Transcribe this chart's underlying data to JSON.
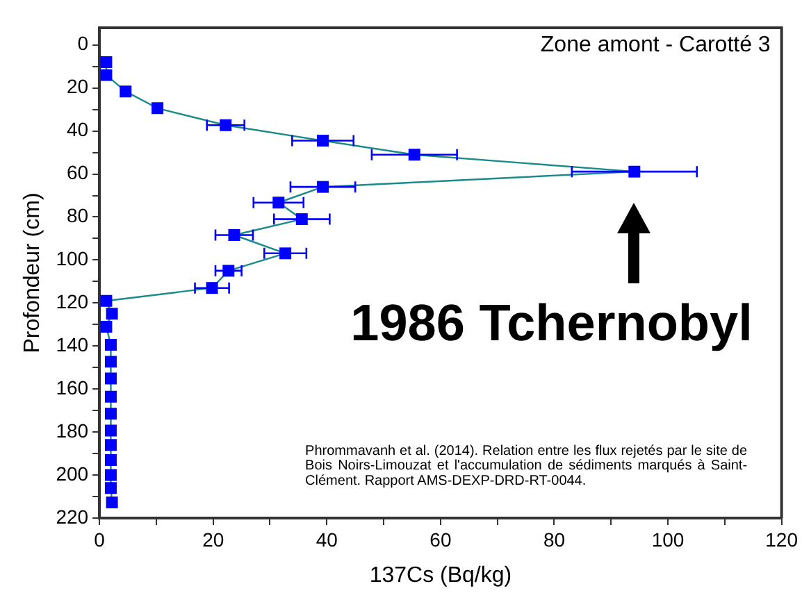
{
  "chart_data": {
    "type": "line",
    "title": "Zone amont - Carotté 3",
    "xlabel": "137Cs (Bq/kg)",
    "ylabel": "Profondeur (cm)",
    "x": [
      1.2,
      1.2,
      4.6,
      10.2,
      22.2,
      39.3,
      55.4,
      94.1,
      39.3,
      31.5,
      35.6,
      23.7,
      32.7,
      22.7,
      19.8,
      1.2,
      2.2,
      1.2,
      2,
      2,
      2,
      2,
      2,
      2,
      2,
      2,
      2,
      2,
      2.2
    ],
    "values": [
      8,
      14,
      21.6,
      29.4,
      37.3,
      44.5,
      51,
      58.9,
      66,
      73.3,
      81,
      88.4,
      96.9,
      105,
      113,
      119,
      125,
      131,
      139.4,
      147.3,
      155.1,
      163.6,
      171.5,
      179.3,
      186,
      193,
      200,
      206,
      212.7
    ],
    "xerrors": [
      null,
      null,
      null,
      null,
      3.3,
      5.4,
      7.5,
      11,
      5.7,
      4.4,
      4.9,
      3.3,
      3.7,
      2.3,
      3,
      null,
      null,
      null,
      null,
      null,
      null,
      null,
      null,
      null,
      null,
      null,
      null,
      null,
      null
    ],
    "color": "#0000ff",
    "marker": "square",
    "line_style": "solid",
    "xlim": [
      0,
      120
    ],
    "xticks": [
      0,
      {
        "value": 10,
        "label": null
      },
      20,
      {
        "value": 30,
        "label": null
      },
      40,
      {
        "value": 50,
        "label": null
      },
      60,
      {
        "value": 70,
        "label": null
      },
      80,
      {
        "value": 90,
        "label": null
      },
      100,
      {
        "value": 110,
        "label": null
      },
      120
    ],
    "ylim": [
      220,
      -8
    ],
    "yticks": [
      0,
      {
        "value": 10,
        "label": null
      },
      20,
      {
        "value": 30,
        "label": null
      },
      40,
      {
        "value": 50,
        "label": null
      },
      60,
      {
        "value": 70,
        "label": null
      },
      80,
      {
        "value": 90,
        "label": null
      },
      100,
      {
        "value": 110,
        "label": null
      },
      120,
      {
        "value": 130,
        "label": null
      },
      140,
      {
        "value": 150,
        "label": null
      },
      160,
      {
        "value": 170,
        "label": null
      },
      180,
      {
        "value": 190,
        "label": null
      },
      200,
      {
        "value": 210,
        "label": null
      },
      220
    ],
    "grid": false,
    "legend": false,
    "annotations": [
      {
        "text": "1986 Tchernobyl",
        "x": 94.1,
        "y": 58.9
      },
      "Phrommavanh $^{}$et al. (2014). Relation entre les flux rejetés par le site de Bois Noirs-Limouzat et l'accumulation de sédiments marqués à Saint-Clément. Rapport AMS-DEXP-DRD-RT-0044."
    ]
  }
}
